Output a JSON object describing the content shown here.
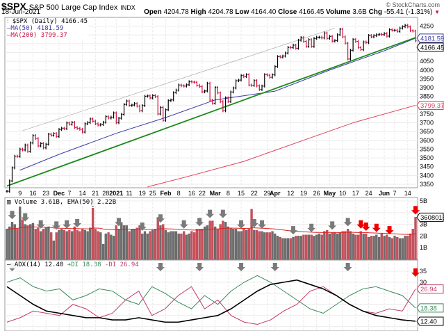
{
  "header": {
    "symbol": "$SPX",
    "name": "S&P 500 Large Cap Index",
    "exchange": "INDX",
    "date": "18-Jun-2021",
    "brand": "© StockCharts.com",
    "open_label": "Open",
    "open": "4204.78",
    "high_label": "High",
    "high": "4204.78",
    "low_label": "Low",
    "low": "4164.40",
    "close_label": "Close",
    "close": "4166.45",
    "volume_label": "Volume",
    "volume": "3.6B",
    "chg_label": "Chg",
    "chg": "-55.41 (-1.31%)",
    "chg_icon": "down-triangle-icon"
  },
  "legend": {
    "price": "$SPX (Daily) 4166.45",
    "ma50": "MA(50) 4181.59",
    "ma200": "MA(200) 3799.37",
    "volume": "Volume 3.61B, EMA(50) 2.22B",
    "adx": "ADX(14) 12.40",
    "pdi": "+DI 18.38",
    "mdi": "-DI 26.94"
  },
  "colors": {
    "up": "#000000",
    "down": "#d01040",
    "ma50": "#3a3aa8",
    "ma200": "#e0405a",
    "trend": "#1a8a1a",
    "channel": "#aaaaaa",
    "vol_up": "#6e6e6e",
    "vol_down": "#c8505a",
    "vol_ema": "#e02020",
    "adx": "#000000",
    "pdi": "#3a8a5a",
    "mdi": "#c03a6a",
    "arrow_gray": "#7a7a7a",
    "arrow_red": "#ee0000"
  },
  "chart_data": {
    "type": "ohlc",
    "start_date": "2020-11-02",
    "end_date": "2021-06-18",
    "closes": [
      3310,
      3369,
      3443,
      3510,
      3509,
      3550,
      3545,
      3573,
      3537,
      3585,
      3627,
      3610,
      3568,
      3582,
      3557,
      3578,
      3635,
      3629,
      3638,
      3622,
      3662,
      3669,
      3666,
      3699,
      3692,
      3702,
      3673,
      3668,
      3663,
      3647,
      3694,
      3701,
      3722,
      3709,
      3694,
      3687,
      3690,
      3703,
      3735,
      3727,
      3732,
      3756,
      3700,
      3726,
      3748,
      3804,
      3824,
      3799,
      3801,
      3809,
      3795,
      3768,
      3798,
      3851,
      3853,
      3841,
      3855,
      3849,
      3750,
      3787,
      3714,
      3774,
      3826,
      3830,
      3871,
      3886,
      3915,
      3911,
      3909,
      3916,
      3934,
      3932,
      3931,
      3913,
      3906,
      3876,
      3881,
      3925,
      3829,
      3811,
      3901,
      3870,
      3820,
      3768,
      3842,
      3821,
      3875,
      3898,
      3939,
      3943,
      3969,
      3963,
      3974,
      3915,
      3913,
      3940,
      3910,
      3889,
      3909,
      3974,
      3971,
      3959,
      3973,
      4020,
      4077,
      4074,
      4080,
      4097,
      4129,
      4128,
      4142,
      4124,
      4170,
      4185,
      4163,
      4135,
      4173,
      4135,
      4180,
      4187,
      4187,
      4183,
      4211,
      4181,
      4192,
      4165,
      4168,
      4201,
      4233,
      4189,
      4153,
      4063,
      4113,
      4174,
      4163,
      4128,
      4116,
      4160,
      4156,
      4197,
      4189,
      4196,
      4201,
      4204,
      4202,
      4208,
      4193,
      4230,
      4227,
      4227,
      4220,
      4239,
      4247,
      4255,
      4246,
      4224,
      4222,
      4166.45
    ],
    "volumes_billions": [
      2.6,
      2.8,
      3.2,
      3.0,
      2.6,
      4.5,
      3.4,
      3.0,
      2.9,
      3.0,
      3.1,
      2.6,
      2.7,
      2.4,
      2.6,
      2.7,
      2.8,
      2.3,
      1.6,
      2.3,
      2.5,
      2.6,
      2.5,
      2.4,
      2.5,
      2.4,
      2.8,
      2.5,
      2.4,
      2.6,
      2.5,
      2.4,
      2.7,
      4.4,
      2.6,
      2.4,
      2.3,
      1.3,
      2.2,
      2.3,
      2.1,
      2.0,
      2.9,
      2.6,
      3.1,
      2.9,
      2.9,
      2.4,
      2.6,
      2.6,
      2.7,
      2.9,
      2.2,
      2.4,
      2.2,
      2.4,
      2.5,
      2.6,
      3.6,
      2.9,
      3.0,
      2.5,
      2.3,
      2.4,
      2.4,
      2.4,
      2.2,
      2.2,
      2.4,
      2.1,
      2.2,
      2.4,
      2.3,
      2.6,
      2.6,
      2.6,
      2.8,
      2.9,
      3.3,
      3.3,
      2.8,
      2.6,
      3.0,
      3.3,
      3.2,
      2.8,
      2.7,
      2.6,
      2.6,
      2.4,
      2.4,
      2.6,
      2.5,
      2.6,
      4.3,
      2.5,
      2.5,
      2.4,
      2.4,
      2.3,
      2.3,
      2.3,
      2.4,
      2.2,
      2.0,
      1.9,
      1.8,
      1.8,
      1.8,
      1.8,
      1.9,
      2.0,
      2.0,
      2.0,
      2.1,
      2.1,
      2.1,
      2.1,
      2.0,
      2.1,
      2.2,
      2.1,
      2.4,
      2.5,
      2.2,
      2.3,
      2.3,
      2.2,
      2.3,
      2.4,
      2.4,
      2.6,
      2.4,
      2.2,
      2.1,
      2.1,
      2.4,
      2.2,
      2.2,
      1.9,
      2.0,
      2.0,
      2.1,
      1.9,
      2.2,
      2.0,
      2.1,
      1.9,
      1.8,
      2.0,
      1.9,
      1.8,
      1.8,
      2.0,
      2.0,
      2.2,
      2.6,
      3.61
    ],
    "ma50": [
      [
        "2020-11-09",
        3430
      ],
      [
        "2020-12-01",
        3520
      ],
      [
        "2021-01-04",
        3640
      ],
      [
        "2021-02-01",
        3730
      ],
      [
        "2021-03-01",
        3830
      ],
      [
        "2021-04-01",
        3880
      ],
      [
        "2021-05-03",
        4000
      ],
      [
        "2021-06-01",
        4110
      ],
      [
        "2021-06-18",
        4181.59
      ]
    ],
    "ma200": [
      [
        "2021-01-21",
        3335
      ],
      [
        "2021-02-16",
        3400
      ],
      [
        "2021-03-16",
        3480
      ],
      [
        "2021-04-15",
        3590
      ],
      [
        "2021-05-14",
        3700
      ],
      [
        "2021-06-18",
        3799.37
      ]
    ],
    "trendline": [
      [
        "2020-11-02",
        3340
      ],
      [
        "2021-06-18",
        4185
      ]
    ],
    "channel_line": [
      [
        "2020-11-10",
        3655
      ],
      [
        "2021-05-05",
        4239
      ]
    ],
    "adx": [
      28,
      24,
      20,
      17,
      16,
      15,
      14,
      14,
      13,
      13,
      14,
      13,
      12,
      12,
      13,
      14,
      15,
      18,
      22,
      26,
      29,
      30,
      31,
      29,
      27,
      24,
      20,
      17,
      15,
      14,
      13,
      12.4
    ],
    "plus_di": [
      30,
      32,
      28,
      26,
      27,
      22,
      24,
      27,
      26,
      22,
      20,
      28,
      25,
      21,
      18,
      24,
      20,
      26,
      30,
      33,
      30,
      26,
      22,
      18,
      16,
      20,
      24,
      27,
      28,
      26,
      24,
      18.38
    ],
    "minus_di": [
      12,
      14,
      17,
      16,
      15,
      20,
      18,
      14,
      16,
      22,
      26,
      15,
      18,
      24,
      28,
      18,
      22,
      15,
      12,
      11,
      13,
      17,
      20,
      26,
      28,
      24,
      20,
      17,
      16,
      18,
      17,
      26.94
    ],
    "volume_arrows": [
      [
        "2020-11-04",
        "gray"
      ],
      [
        "2020-11-11",
        "gray"
      ],
      [
        "2020-11-19",
        "gray"
      ],
      [
        "2020-11-30",
        "gray"
      ],
      [
        "2020-12-04",
        "gray"
      ],
      [
        "2020-12-10",
        "gray"
      ],
      [
        "2020-12-18",
        "gray"
      ],
      [
        "2021-01-05",
        "gray"
      ],
      [
        "2021-01-19",
        "gray"
      ],
      [
        "2021-01-28",
        "gray"
      ],
      [
        "2021-02-10",
        "gray"
      ],
      [
        "2021-02-19",
        "gray"
      ],
      [
        "2021-02-25",
        "gray"
      ],
      [
        "2021-03-04",
        "gray"
      ],
      [
        "2021-03-15",
        "gray"
      ],
      [
        "2021-03-22",
        "gray"
      ],
      [
        "2021-03-25",
        "gray"
      ],
      [
        "2021-04-13",
        "gray"
      ],
      [
        "2021-04-22",
        "gray"
      ],
      [
        "2021-05-04",
        "gray"
      ],
      [
        "2021-05-12",
        "gray"
      ],
      [
        "2021-05-19",
        "red"
      ],
      [
        "2021-05-21",
        "red"
      ],
      [
        "2021-05-27",
        "red"
      ],
      [
        "2021-06-03",
        "red"
      ],
      [
        "2021-06-17",
        "red"
      ],
      [
        "2021-06-18",
        "red"
      ]
    ],
    "adx_arrows": [
      [
        "2020-11-04",
        "gray"
      ],
      [
        "2021-01-28",
        "gray"
      ],
      [
        "2021-02-19",
        "gray"
      ],
      [
        "2021-03-15",
        "gray"
      ],
      [
        "2021-04-01",
        "gray"
      ],
      [
        "2021-05-12",
        "gray"
      ],
      [
        "2021-06-17",
        "red"
      ]
    ],
    "x_ticks": [
      [
        "2020-11-09",
        "9",
        false
      ],
      [
        "2020-11-16",
        "16",
        false
      ],
      [
        "2020-11-23",
        "23",
        false
      ],
      [
        "2020-12-01",
        "Dec",
        true
      ],
      [
        "2020-12-07",
        "7",
        false
      ],
      [
        "2020-12-14",
        "14",
        false
      ],
      [
        "2020-12-21",
        "21",
        false
      ],
      [
        "2020-12-28",
        "28",
        false
      ],
      [
        "2021-01-04",
        "2021",
        true
      ],
      [
        "2021-01-11",
        "11",
        false
      ],
      [
        "2021-01-19",
        "19",
        false
      ],
      [
        "2021-01-25",
        "25",
        false
      ],
      [
        "2021-02-01",
        "Feb",
        true
      ],
      [
        "2021-02-08",
        "8",
        false
      ],
      [
        "2021-02-16",
        "16",
        false
      ],
      [
        "2021-02-22",
        "22",
        false
      ],
      [
        "2021-03-01",
        "Mar",
        true
      ],
      [
        "2021-03-08",
        "8",
        false
      ],
      [
        "2021-03-15",
        "15",
        false
      ],
      [
        "2021-03-22",
        "22",
        false
      ],
      [
        "2021-03-29",
        "29",
        false
      ],
      [
        "2021-04-01",
        "Apr",
        true
      ],
      [
        "2021-04-12",
        "12",
        false
      ],
      [
        "2021-04-19",
        "19",
        false
      ],
      [
        "2021-04-26",
        "26",
        false
      ],
      [
        "2021-05-03",
        "May",
        true
      ],
      [
        "2021-05-10",
        "10",
        false
      ],
      [
        "2021-05-17",
        "17",
        false
      ],
      [
        "2021-05-24",
        "24",
        false
      ],
      [
        "2021-06-01",
        "Jun",
        true
      ],
      [
        "2021-06-07",
        "7",
        false
      ],
      [
        "2021-06-14",
        "14",
        false
      ]
    ],
    "price_ticks": [
      4250,
      4200,
      4150,
      4100,
      4050,
      4000,
      3950,
      3900,
      3850,
      3800,
      3750,
      3700,
      3650,
      3600,
      3550,
      3500,
      3450,
      3400,
      3350
    ],
    "price_ylim": [
      3330,
      4300
    ],
    "price_tags": [
      {
        "text": "4166.45",
        "color": "#000000"
      },
      {
        "text": "3799.37",
        "color": "#e0405a"
      },
      {
        "text": "4181.59",
        "color": "#3a3aa8"
      }
    ],
    "volume_ticks": [
      [
        "5B",
        5
      ],
      [
        "4B",
        4
      ],
      [
        "3B",
        3
      ],
      [
        "2B",
        2
      ],
      [
        "1B",
        1
      ]
    ],
    "volume_ylim": [
      0,
      5.3
    ],
    "volume_tag": "3608016",
    "adx_ticks": [
      35,
      30,
      25,
      20,
      15,
      10
    ],
    "adx_ylim": [
      8,
      40
    ],
    "adx_tags": [
      {
        "text": "26.94",
        "color": "#c03a6a"
      },
      {
        "text": "18.38",
        "color": "#3a8a5a"
      },
      {
        "text": "12.40",
        "color": "#000000"
      }
    ]
  }
}
